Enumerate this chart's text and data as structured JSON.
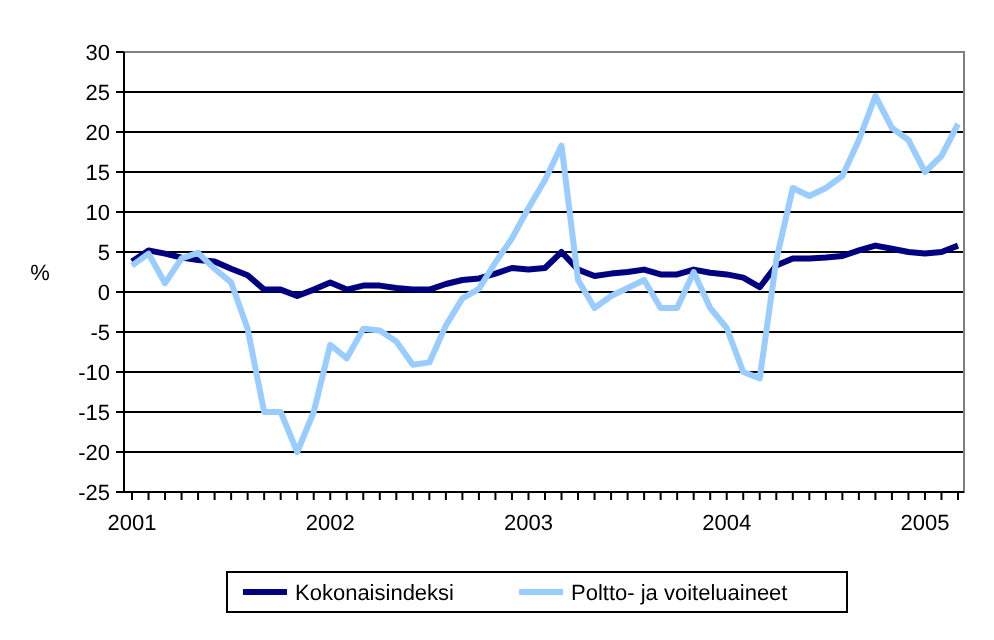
{
  "chart_data": {
    "type": "line",
    "ylabel": "%",
    "categories": [
      "2001",
      null,
      null,
      null,
      null,
      null,
      null,
      null,
      null,
      null,
      null,
      null,
      "2002",
      null,
      null,
      null,
      null,
      null,
      null,
      null,
      null,
      null,
      null,
      null,
      "2003",
      null,
      null,
      null,
      null,
      null,
      null,
      null,
      null,
      null,
      null,
      null,
      "2004",
      null,
      null,
      null,
      null,
      null,
      null,
      null,
      null,
      null,
      null,
      null,
      "2005",
      null,
      null
    ],
    "series": [
      {
        "name": "Kokonaisindeksi",
        "color": "#000080",
        "values": [
          3.8,
          5.2,
          4.8,
          4.3,
          4,
          3.8,
          2.9,
          2.1,
          0.3,
          0.3,
          -0.5,
          0.3,
          1.2,
          0.3,
          0.8,
          0.8,
          0.5,
          0.3,
          0.3,
          1,
          1.5,
          1.7,
          2.3,
          3,
          2.8,
          3,
          5,
          2.8,
          2,
          2.3,
          2.5,
          2.8,
          2.2,
          2.2,
          2.8,
          2.4,
          2.2,
          1.8,
          0.6,
          3.3,
          4.2,
          4.2,
          4.3,
          4.5,
          5.2,
          5.8,
          5.4,
          5,
          4.8,
          5,
          5.8
        ]
      },
      {
        "name": "Poltto- ja voiteluaineet",
        "color": "#99ccff",
        "values": [
          3.3,
          4.8,
          1.1,
          4.2,
          4.9,
          2.9,
          1.2,
          -4.6,
          -15,
          -15,
          -20,
          -15,
          -6.6,
          -8.3,
          -4.6,
          -4.8,
          -6.2,
          -9.1,
          -8.8,
          -4.2,
          -0.8,
          0.4,
          3.7,
          6.7,
          10.5,
          14,
          18.3,
          1.5,
          -2,
          -0.5,
          0.5,
          1.5,
          -2,
          -2,
          2.5,
          -2,
          -4.5,
          -10,
          -10.8,
          4,
          13,
          12,
          13,
          14.5,
          19,
          24.5,
          20.5,
          19,
          15,
          17,
          21
        ]
      }
    ],
    "ylim": [
      -25,
      30
    ],
    "yticks": [
      -25,
      -20,
      -15,
      -10,
      -5,
      0,
      5,
      10,
      15,
      20,
      25,
      30
    ],
    "grid": "y",
    "legend": "bottom",
    "marker": "none",
    "line_style": "solid"
  }
}
